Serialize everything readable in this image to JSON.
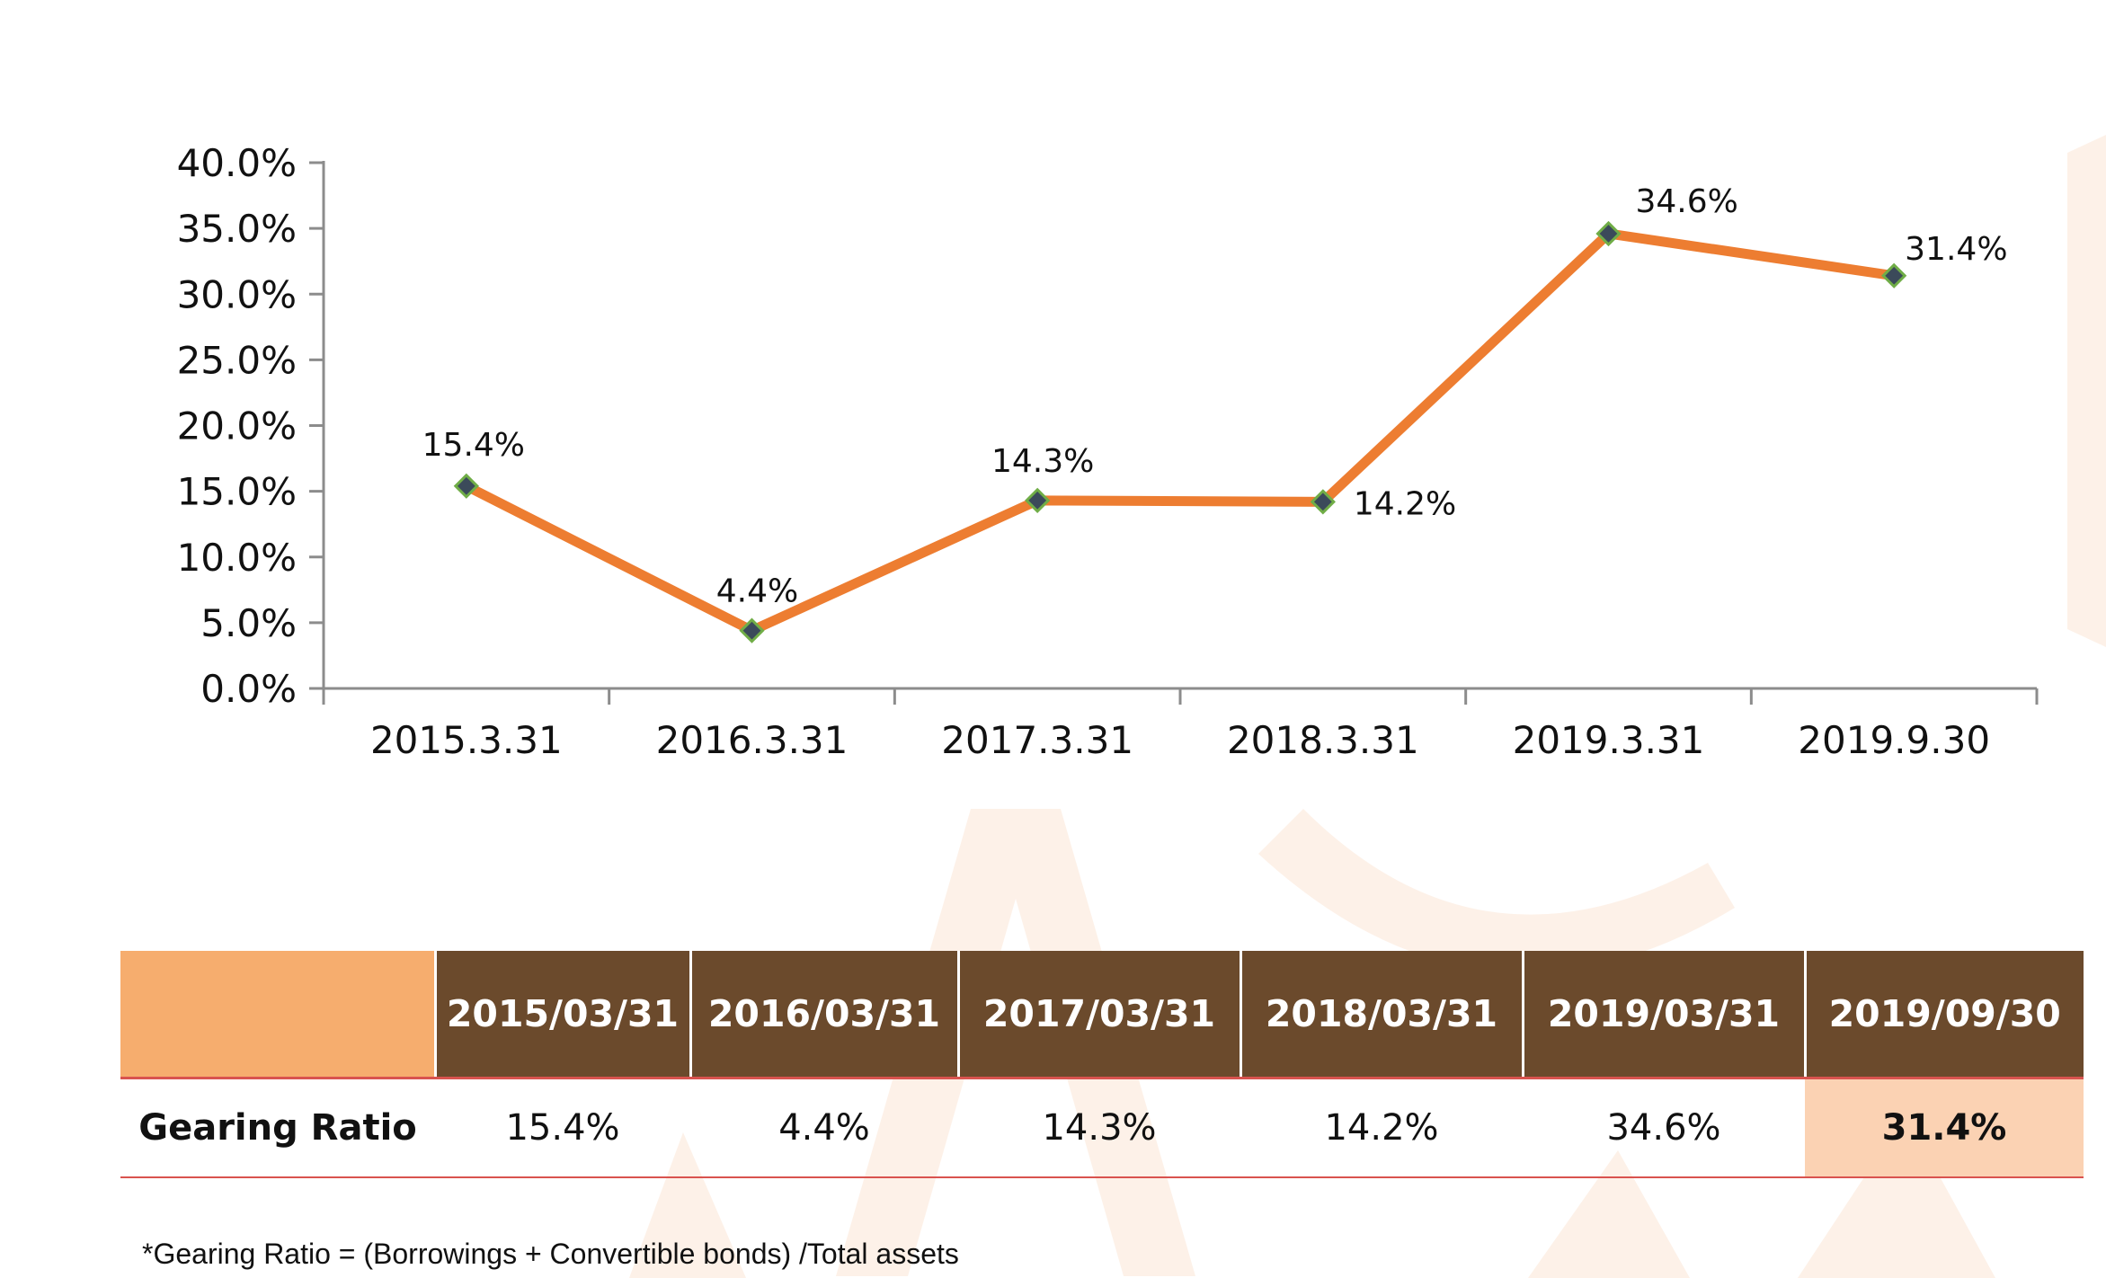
{
  "chart_data": {
    "type": "line",
    "categories": [
      "2015.3.31",
      "2016.3.31",
      "2017.3.31",
      "2018.3.31",
      "2019.3.31",
      "2019.9.30"
    ],
    "series": [
      {
        "values": [
          15.4,
          4.4,
          14.3,
          14.2,
          34.6,
          31.4
        ],
        "labels": [
          "15.4%",
          "4.4%",
          "14.3%",
          "14.2%",
          "34.6%",
          "31.4%"
        ]
      }
    ],
    "y_ticks": [
      "0.0%",
      "5.0%",
      "10.0%",
      "15.0%",
      "20.0%",
      "25.0%",
      "30.0%",
      "35.0%",
      "40.0%"
    ],
    "ylim": [
      0,
      40
    ],
    "grid": false,
    "legend": "none",
    "line_color": "#ed7d31",
    "marker_color": "#3b4a5a",
    "marker_edge_color": "#70ad47"
  },
  "table": {
    "headers": [
      "2015/03/31",
      "2016/03/31",
      "2017/03/31",
      "2018/03/31",
      "2019/03/31",
      "2019/09/30"
    ],
    "row_label": "Gearing Ratio",
    "values": [
      "15.4%",
      "4.4%",
      "14.3%",
      "14.2%",
      "34.6%",
      "31.4%"
    ],
    "header_color": "#6b4a2c",
    "corner_color": "#f6ad6e",
    "highlight_color": "#fbd2b3"
  },
  "footnote": "*Gearing Ratio = (Borrowings + Convertible bonds) /Total assets"
}
